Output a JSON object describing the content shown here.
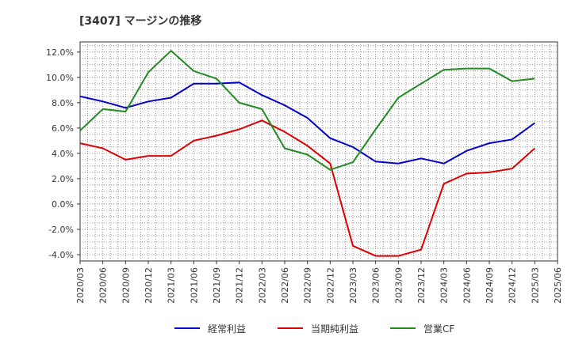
{
  "chart_data": {
    "type": "line",
    "title": "[3407]  マージンの推移",
    "xlabel": "",
    "ylabel": "",
    "x_ticks": [
      "2020/03",
      "2020/06",
      "2020/09",
      "2020/12",
      "2021/03",
      "2021/06",
      "2021/09",
      "2021/12",
      "2022/03",
      "2022/06",
      "2022/09",
      "2022/12",
      "2023/03",
      "2023/06",
      "2023/09",
      "2023/12",
      "2024/03",
      "2024/06",
      "2024/09",
      "2024/12",
      "2025/03",
      "2025/06"
    ],
    "y_ticks": [
      "12.0%",
      "10.0%",
      "8.0%",
      "6.0%",
      "4.0%",
      "2.0%",
      "0.0%",
      "-2.0%",
      "-4.0%"
    ],
    "ylim": [
      -4.5,
      12.8
    ],
    "grid": true,
    "legend_position": "bottom",
    "categories": [
      "2020/03",
      "2020/06",
      "2020/09",
      "2020/12",
      "2021/03",
      "2021/06",
      "2021/09",
      "2021/12",
      "2022/03",
      "2022/06",
      "2022/09",
      "2022/12",
      "2023/03",
      "2023/06",
      "2023/09",
      "2023/12",
      "2024/03",
      "2024/06",
      "2024/09",
      "2024/12",
      "2025/03"
    ],
    "series": [
      {
        "name": "経常利益",
        "color": "#0000cc",
        "values": [
          8.5,
          8.1,
          7.6,
          8.1,
          8.4,
          9.5,
          9.5,
          9.6,
          8.6,
          7.8,
          6.8,
          5.2,
          4.5,
          3.35,
          3.2,
          3.6,
          3.2,
          4.2,
          4.8,
          5.1,
          6.4
        ]
      },
      {
        "name": "当期純利益",
        "color": "#dd0000",
        "values": [
          4.8,
          4.4,
          3.5,
          3.8,
          3.8,
          5.0,
          5.4,
          5.9,
          6.6,
          5.7,
          4.6,
          3.2,
          -3.3,
          -4.1,
          -4.1,
          -3.6,
          1.6,
          2.4,
          2.5,
          2.8,
          4.4
        ]
      },
      {
        "name": "営業CF",
        "color": "#228b22",
        "values": [
          5.8,
          7.5,
          7.3,
          10.4,
          12.1,
          10.5,
          9.9,
          8.0,
          7.5,
          4.4,
          3.9,
          2.7,
          3.3,
          5.9,
          8.4,
          9.5,
          10.6,
          10.7,
          10.7,
          9.7,
          9.9
        ]
      }
    ]
  }
}
